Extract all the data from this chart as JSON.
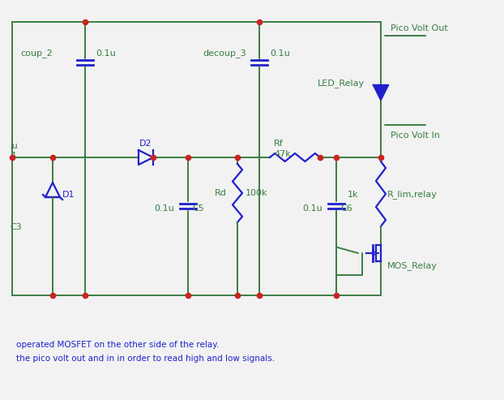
{
  "bg_color": "#f2f2f2",
  "wire_color": "#3a7d44",
  "component_color": "#2020cc",
  "text_color_green": "#3a7d44",
  "text_color_blue": "#2020cc",
  "node_color": "#cc2222",
  "note_text_1": "operated MOSFET on the other side of the relay.",
  "note_text_2": "the pico volt out and in in order to read high and low signals.",
  "labels": {
    "decoup_2": "coup_2",
    "decoup_2_val": "0.1u",
    "decoup_3": "decoup_3",
    "decoup_3_val": "0.1u",
    "pico_volt_out": "Pico Volt Out",
    "led_relay": "LED_Relay",
    "pico_volt_in": "Pico Volt In",
    "d2": "D2",
    "d1": "D1",
    "c5_val": "0.1u",
    "c5": "C5",
    "rd": "Rd",
    "rd_val": "100k",
    "rf": "Rf",
    "rf_val": "47k",
    "c6_val": "0.1u",
    "c6": "C6",
    "r_lim": "1k",
    "r_lim_name": "R_lim,relay",
    "mos_relay": "MOS_Relay",
    "c3": "C3",
    "left_cap_val": ".u",
    "left_val2": "4"
  }
}
